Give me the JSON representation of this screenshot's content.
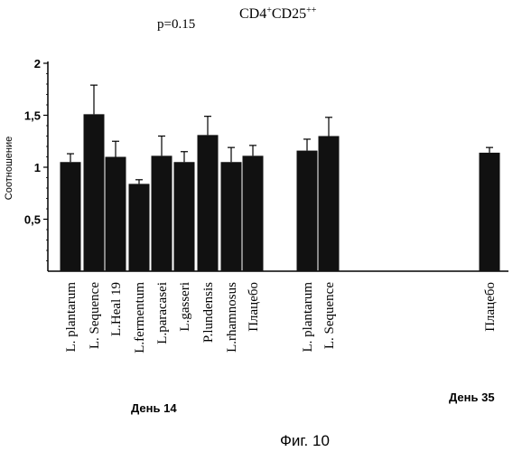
{
  "chart_data": {
    "type": "bar",
    "title": "CD4+CD25++",
    "title_main": "CD4",
    "title_sup1": "+",
    "title_mid": "CD25",
    "title_sup2": "++",
    "pvalue": "p=0.15",
    "ylabel": "Соотношение",
    "ylim": [
      0,
      2
    ],
    "yticks": [
      {
        "value": 0.5,
        "label": "0,5"
      },
      {
        "value": 1,
        "label": "1"
      },
      {
        "value": 1.5,
        "label": "1,5"
      },
      {
        "value": 2,
        "label": "2"
      }
    ],
    "grid": false,
    "groups": [
      {
        "name": "День 14",
        "bars": [
          {
            "label": "L. plantarum",
            "value": 1.05,
            "error": 0.08
          },
          {
            "label": "L. Sequence",
            "value": 1.51,
            "error": 0.28
          },
          {
            "label": "L.Heal 19",
            "value": 1.1,
            "error": 0.15
          },
          {
            "label": "L.fermentum",
            "value": 0.84,
            "error": 0.04
          },
          {
            "label": "L.paracasei",
            "value": 1.11,
            "error": 0.19
          },
          {
            "label": "L.gasseri",
            "value": 1.05,
            "error": 0.1
          },
          {
            "label": "P.lundensis",
            "value": 1.31,
            "error": 0.18
          },
          {
            "label": "L.rhamnosus",
            "value": 1.05,
            "error": 0.14
          },
          {
            "label": "Плацебо",
            "value": 1.11,
            "error": 0.1
          }
        ]
      },
      {
        "name": "",
        "bars": [
          {
            "label": "L. plantarum",
            "value": 1.16,
            "error": 0.11
          },
          {
            "label": "L. Sequence",
            "value": 1.3,
            "error": 0.18
          }
        ]
      },
      {
        "name": "День 35",
        "bars": [
          {
            "label": "Плацебо",
            "value": 1.14,
            "error": 0.05
          }
        ]
      }
    ]
  },
  "figure_caption": "Фиг. 10"
}
